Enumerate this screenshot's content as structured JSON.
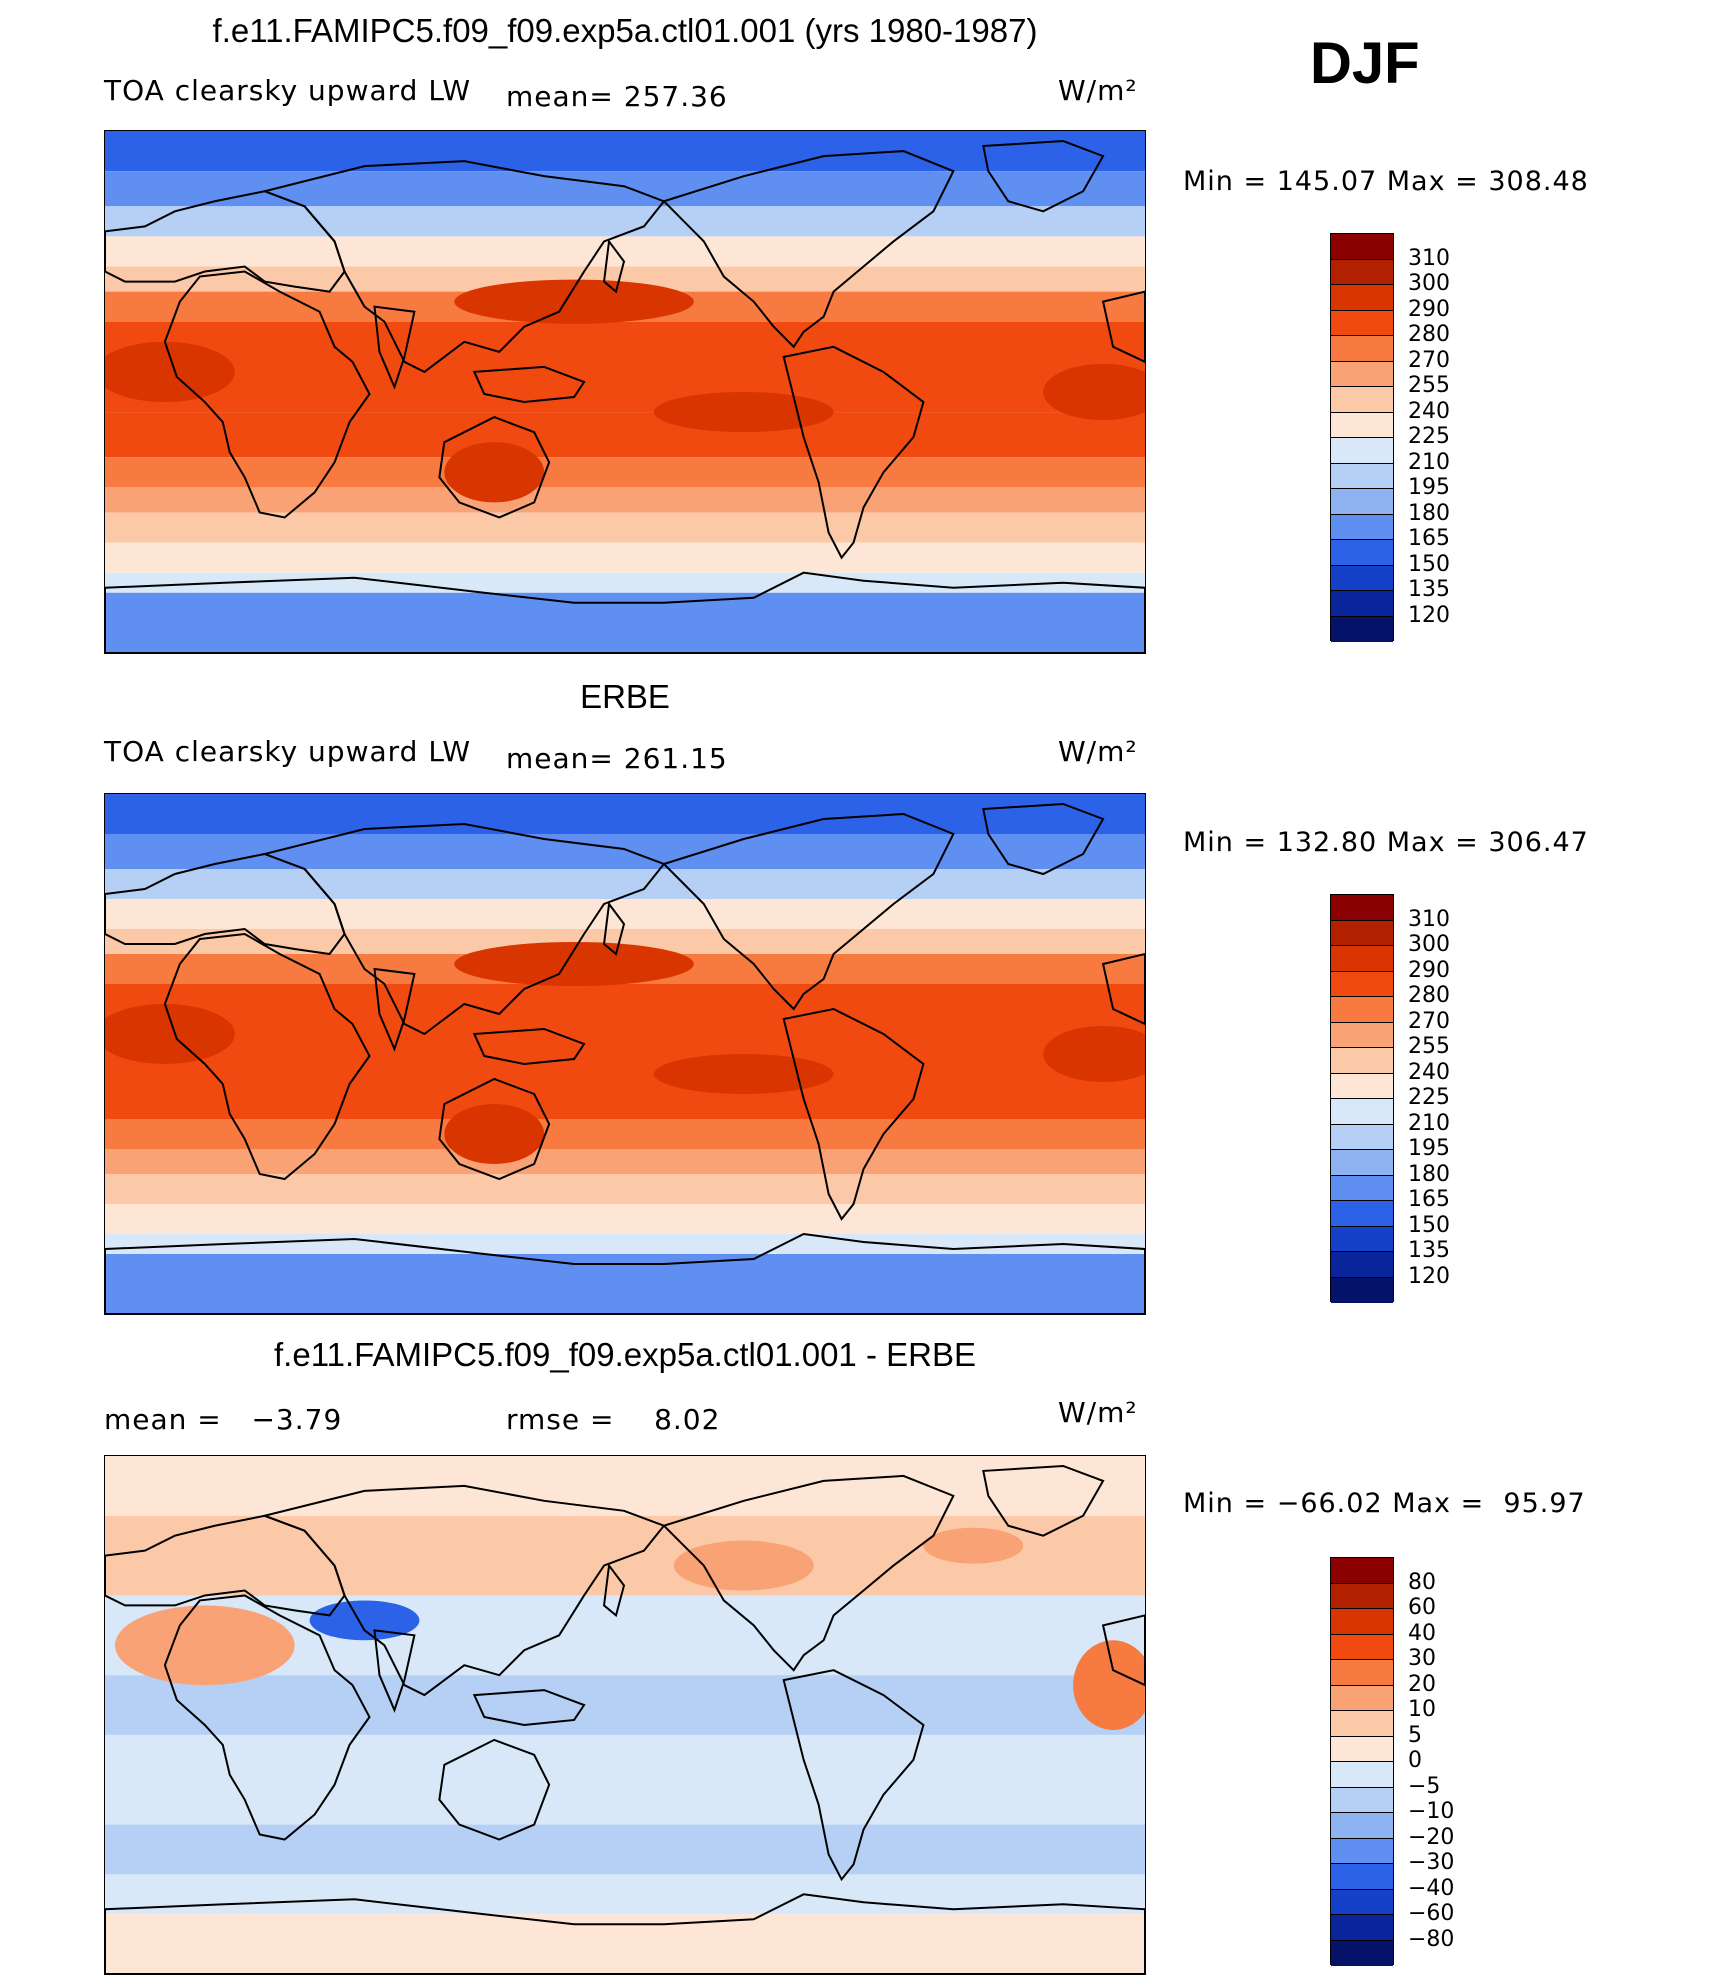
{
  "header": {
    "season": "DJF"
  },
  "panels": [
    {
      "id": "model",
      "title": "f.e11.FAMIPC5.f09_f09.exp5a.ctl01.001 (yrs 1980-1987)",
      "left_label": "TOA clearsky upward LW",
      "center_label": "mean= 257.36",
      "units": "W/m²",
      "minmax": "Min = 145.07 Max = 308.48",
      "type": "abs",
      "colorbar": {
        "levels": [
          "310",
          "300",
          "290",
          "280",
          "270",
          "255",
          "240",
          "225",
          "210",
          "195",
          "180",
          "165",
          "150",
          "135",
          "120"
        ],
        "colors": [
          "#8b0000",
          "#b22000",
          "#d93500",
          "#f04a10",
          "#f77a40",
          "#f9a276",
          "#fbc8a8",
          "#fde6d5",
          "#d8e8f8",
          "#b5cff5",
          "#8fb3f0",
          "#5f8ff0",
          "#2c62e8",
          "#1540c8",
          "#0a259c",
          "#05126a"
        ]
      }
    },
    {
      "id": "obs",
      "title": "ERBE",
      "left_label": "TOA clearsky upward LW",
      "center_label": "mean= 261.15",
      "units": "W/m²",
      "minmax": "Min = 132.80 Max = 306.47",
      "type": "abs",
      "colorbar": {
        "levels": [
          "310",
          "300",
          "290",
          "280",
          "270",
          "255",
          "240",
          "225",
          "210",
          "195",
          "180",
          "165",
          "150",
          "135",
          "120"
        ],
        "colors": [
          "#8b0000",
          "#b22000",
          "#d93500",
          "#f04a10",
          "#f77a40",
          "#f9a276",
          "#fbc8a8",
          "#fde6d5",
          "#d8e8f8",
          "#b5cff5",
          "#8fb3f0",
          "#5f8ff0",
          "#2c62e8",
          "#1540c8",
          "#0a259c",
          "#05126a"
        ]
      }
    },
    {
      "id": "diff",
      "title": "f.e11.FAMIPC5.f09_f09.exp5a.ctl01.001 - ERBE",
      "left_label": "mean =   −3.79",
      "center_label": "rmse =    8.02",
      "units": "W/m²",
      "minmax": "Min = −66.02 Max =  95.97",
      "type": "diff",
      "colorbar": {
        "levels": [
          "80",
          "60",
          "40",
          "30",
          "20",
          "10",
          "5",
          "0",
          "−5",
          "−10",
          "−20",
          "−30",
          "−40",
          "−60",
          "−80"
        ],
        "colors": [
          "#8b0000",
          "#b22000",
          "#d93500",
          "#f04a10",
          "#f77a40",
          "#f9a276",
          "#fbc8a8",
          "#fde6d5",
          "#d8e8f8",
          "#b5cff5",
          "#8fb3f0",
          "#5f8ff0",
          "#2c62e8",
          "#1540c8",
          "#0a259c",
          "#05126a"
        ]
      }
    }
  ]
}
